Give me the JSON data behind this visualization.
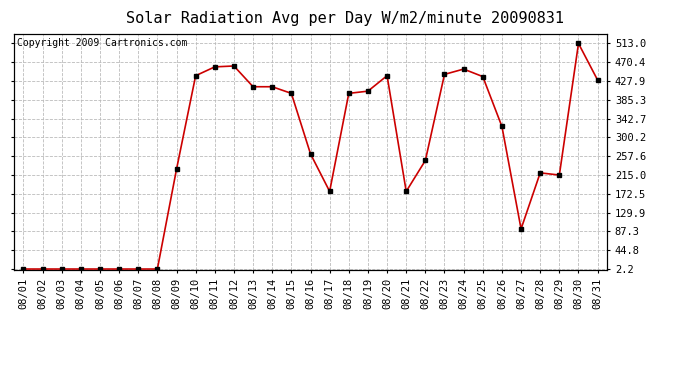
{
  "title": "Solar Radiation Avg per Day W/m2/minute 20090831",
  "copyright": "Copyright 2009 Cartronics.com",
  "x_labels": [
    "08/01",
    "08/02",
    "08/03",
    "08/04",
    "08/05",
    "08/06",
    "08/07",
    "08/08",
    "08/09",
    "08/10",
    "08/11",
    "08/12",
    "08/13",
    "08/14",
    "08/15",
    "08/16",
    "08/17",
    "08/18",
    "08/19",
    "08/20",
    "08/21",
    "08/22",
    "08/23",
    "08/24",
    "08/25",
    "08/26",
    "08/27",
    "08/28",
    "08/29",
    "08/30",
    "08/31"
  ],
  "y_values": [
    2.2,
    2.2,
    2.2,
    2.2,
    2.2,
    2.2,
    2.2,
    2.2,
    228.0,
    440.0,
    460.0,
    462.0,
    415.0,
    415.0,
    400.0,
    263.0,
    178.0,
    400.0,
    405.0,
    440.0,
    178.0,
    248.0,
    443.0,
    455.0,
    438.0,
    325.0,
    93.0,
    220.0,
    215.0,
    513.0,
    430.0
  ],
  "yticks": [
    2.2,
    44.8,
    87.3,
    129.9,
    172.5,
    215.0,
    257.6,
    300.2,
    342.7,
    385.3,
    427.9,
    470.4,
    513.0
  ],
  "line_color": "#cc0000",
  "marker_color": "#000000",
  "bg_color": "#ffffff",
  "grid_color": "#bbbbbb",
  "title_fontsize": 11,
  "copyright_fontsize": 7,
  "tick_fontsize": 7.5,
  "ylim": [
    0,
    535
  ],
  "xlim_min": -0.5,
  "xlim_max": 30.5
}
